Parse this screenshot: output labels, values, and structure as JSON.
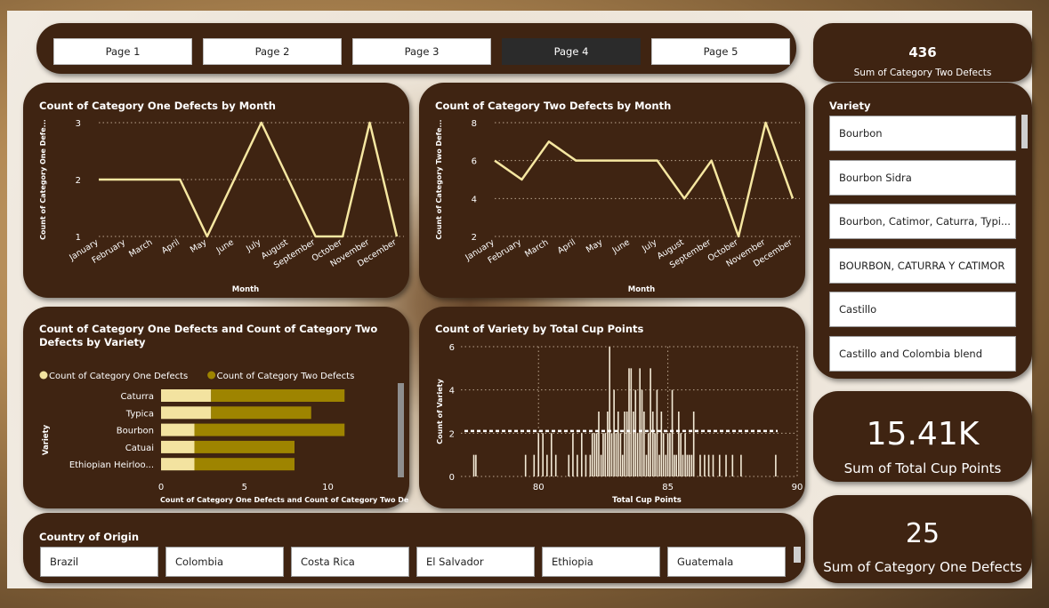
{
  "nav": {
    "pages": [
      "Page 1",
      "Page 2",
      "Page 3",
      "Page 4",
      "Page 5"
    ],
    "active_index": 3
  },
  "kpis": {
    "cat_two_total": {
      "value": "436",
      "label": "Sum of Category Two Defects"
    },
    "total_cup_points": {
      "value": "15.41K",
      "label": "Sum of Total Cup Points"
    },
    "cat_one_total": {
      "value": "25",
      "label": "Sum of Category One Defects"
    }
  },
  "variety_slicer": {
    "title": "Variety",
    "items": [
      "Bourbon",
      "Bourbon Sidra",
      "Bourbon, Catimor, Caturra, Typi...",
      "BOURBON, CATURRA Y CATIMOR",
      "Castillo",
      "Castillo and Colombia blend"
    ]
  },
  "country_slicer": {
    "title": "Country of Origin",
    "items": [
      "Brazil",
      "Colombia",
      "Costa Rica",
      "El Salvador",
      "Ethiopia",
      "Guatemala"
    ]
  },
  "colors": {
    "card": "#3f2412",
    "line": "#f6e7a1",
    "bar_one": "#f3e3a0",
    "bar_two": "#9e8400",
    "hist": "#f3ead6"
  },
  "chart_data": [
    {
      "type": "line",
      "title": "Count of Category One Defects by Month",
      "xlabel": "Month",
      "ylabel": "Count of Category One Defe...",
      "categories": [
        "January",
        "February",
        "March",
        "April",
        "May",
        "June",
        "July",
        "August",
        "September",
        "October",
        "November",
        "December"
      ],
      "values": [
        2,
        2,
        2,
        2,
        1,
        2,
        3,
        2,
        1,
        1,
        3,
        1
      ],
      "ylim": [
        1,
        3
      ],
      "yticks": [
        "1",
        "2",
        "3"
      ],
      "grid": true
    },
    {
      "type": "line",
      "title": "Count of Category Two Defects by Month",
      "xlabel": "Month",
      "ylabel": "Count of Category Two Defe...",
      "categories": [
        "January",
        "February",
        "March",
        "April",
        "May",
        "June",
        "July",
        "August",
        "September",
        "October",
        "November",
        "December"
      ],
      "values": [
        6,
        5,
        7,
        6,
        6,
        6,
        6,
        4,
        6,
        2,
        8,
        4
      ],
      "ylim": [
        2,
        8
      ],
      "yticks": [
        "2",
        "4",
        "6",
        "8"
      ],
      "grid": true
    },
    {
      "type": "bar",
      "orientation": "horizontal",
      "stacked": true,
      "title": "Count of Category One Defects and Count of Category Two Defects by Variety",
      "xlabel": "Count of Category One Defects and Count of Category Two De...",
      "ylabel": "Variety",
      "categories": [
        "Caturra",
        "Typica",
        "Bourbon",
        "Catuai",
        "Ethiopian Heirloo..."
      ],
      "series": [
        {
          "name": "Count of Category One Defects",
          "values": [
            3,
            3,
            2,
            2,
            2
          ]
        },
        {
          "name": "Count of Category Two Defects",
          "values": [
            8,
            6,
            9,
            6,
            6
          ]
        }
      ],
      "xlim": [
        0,
        12
      ],
      "xticks": [
        "0",
        "5",
        "10"
      ],
      "legend": "top-left"
    },
    {
      "type": "bar",
      "title": "Count of Variety by Total Cup Points",
      "xlabel": "Total Cup Points",
      "ylabel": "Count of Variety",
      "xlim": [
        77,
        90
      ],
      "ylim": [
        0,
        6
      ],
      "xticks": [
        "80",
        "85",
        "90"
      ],
      "yticks": [
        "0",
        "2",
        "4",
        "6"
      ],
      "average_line": 2.1,
      "x": [
        77.5,
        77.58,
        79.5,
        79.83,
        80.0,
        80.17,
        80.33,
        80.5,
        80.67,
        81.17,
        81.33,
        81.5,
        81.67,
        81.83,
        82.0,
        82.08,
        82.17,
        82.25,
        82.33,
        82.42,
        82.5,
        82.58,
        82.67,
        82.75,
        82.83,
        82.92,
        83.0,
        83.08,
        83.17,
        83.25,
        83.33,
        83.42,
        83.5,
        83.58,
        83.67,
        83.75,
        83.83,
        83.92,
        84.0,
        84.08,
        84.17,
        84.25,
        84.33,
        84.42,
        84.5,
        84.58,
        84.67,
        84.75,
        84.83,
        84.92,
        85.0,
        85.08,
        85.17,
        85.25,
        85.33,
        85.42,
        85.5,
        85.58,
        85.67,
        85.75,
        85.83,
        85.92,
        86.0,
        86.25,
        86.42,
        86.58,
        86.75,
        87.0,
        87.25,
        87.5,
        87.83,
        89.17
      ],
      "values": [
        1,
        1,
        1,
        1,
        2,
        2,
        1,
        2,
        1,
        1,
        2,
        1,
        2,
        1,
        1,
        2,
        2,
        2,
        3,
        1,
        2,
        2,
        3,
        6,
        2,
        4,
        2,
        3,
        2,
        1,
        3,
        3,
        5,
        5,
        3,
        4,
        2,
        5,
        4,
        3,
        1,
        2,
        5,
        3,
        2,
        4,
        1,
        3,
        2,
        1,
        2,
        2,
        4,
        1,
        1,
        3,
        2,
        1,
        2,
        1,
        1,
        1,
        3,
        1,
        1,
        1,
        1,
        1,
        1,
        1,
        1,
        1
      ]
    }
  ]
}
